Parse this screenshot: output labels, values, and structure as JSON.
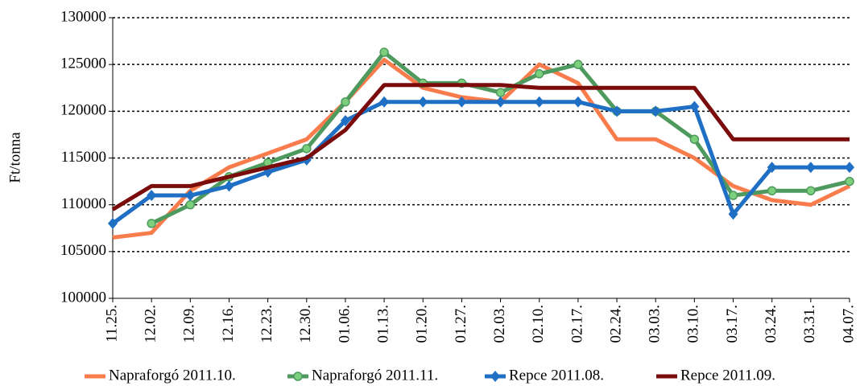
{
  "chart_data": {
    "type": "line",
    "y_label": "Ft/tonna",
    "categories": [
      "11.25.",
      "12.02.",
      "12.09.",
      "12.16.",
      "12.23.",
      "12.30.",
      "01.06.",
      "01.13.",
      "01.20.",
      "01.27.",
      "02.03.",
      "02.10.",
      "02.17.",
      "02.24.",
      "03.03.",
      "03.10.",
      "03.17.",
      "03.24.",
      "03.31.",
      "04.07."
    ],
    "series": [
      {
        "name": "Napraforgó 2011.10.",
        "color": "#f97c4d",
        "marker": "none",
        "values": [
          106500,
          107000,
          111500,
          114000,
          115500,
          117000,
          121000,
          125500,
          122500,
          121500,
          121000,
          125000,
          123000,
          117000,
          117000,
          115000,
          112000,
          110500,
          110000,
          112000
        ]
      },
      {
        "name": "Napraforgó 2011.11.",
        "color": "#4e9a5e",
        "marker": "circle",
        "values": [
          null,
          108000,
          110000,
          113000,
          114500,
          116000,
          121000,
          126300,
          123000,
          123000,
          122000,
          124000,
          125000,
          120000,
          120000,
          117000,
          111000,
          111500,
          111500,
          112500
        ]
      },
      {
        "name": "Repce 2011.08.",
        "color": "#1f6fc5",
        "marker": "diamond",
        "values": [
          108000,
          111000,
          111000,
          112000,
          113500,
          114800,
          119000,
          121000,
          121000,
          121000,
          121000,
          121000,
          121000,
          120000,
          120000,
          120500,
          109000,
          114000,
          114000,
          114000
        ]
      },
      {
        "name": "Repce 2011.09.",
        "color": "#7b0c0c",
        "marker": "none",
        "values": [
          109500,
          112000,
          112000,
          113000,
          114000,
          115000,
          118000,
          122800,
          122800,
          122800,
          122800,
          122500,
          122500,
          122500,
          122500,
          122500,
          117000,
          117000,
          117000,
          117000
        ]
      }
    ],
    "ylim": [
      100000,
      130000
    ],
    "yticks": [
      100000,
      105000,
      110000,
      115000,
      120000,
      125000,
      130000
    ],
    "grid": true,
    "legend": "bottom"
  }
}
